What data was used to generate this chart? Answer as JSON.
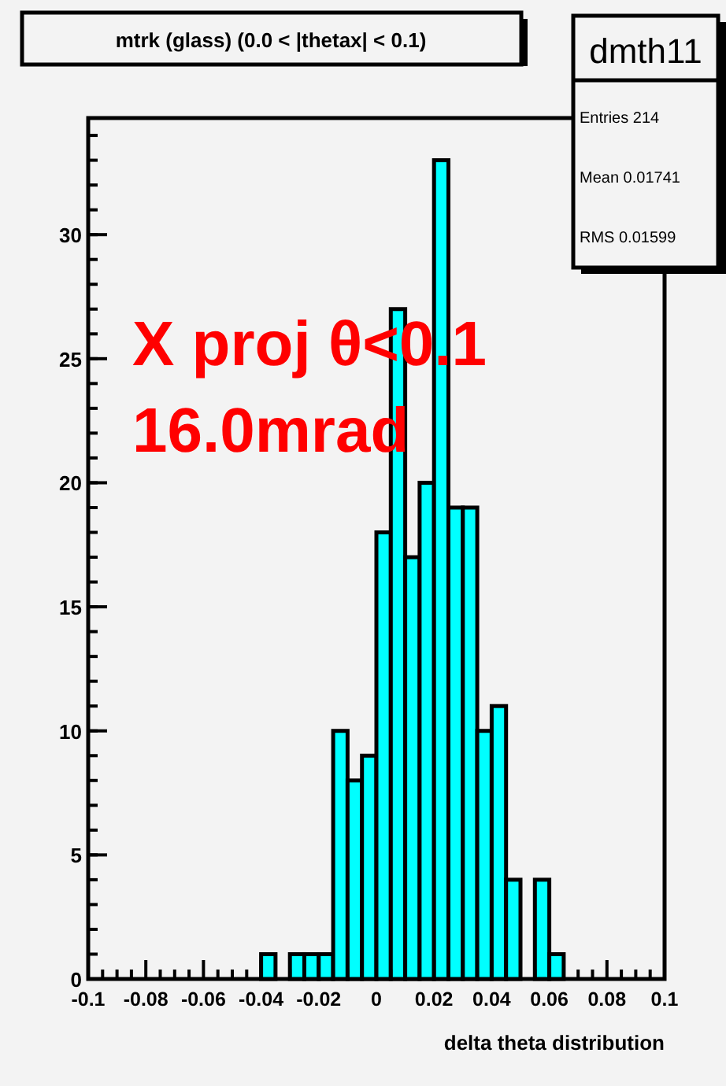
{
  "chart_data": {
    "type": "histogram",
    "title": "mtrk (glass) (0.0 < |thetax| < 0.1)",
    "xlabel": "delta theta distribution",
    "bins": [
      -0.1,
      -0.095,
      -0.09,
      -0.085,
      -0.08,
      -0.075,
      -0.07,
      -0.065,
      -0.06,
      -0.055,
      -0.05,
      -0.045,
      -0.04,
      -0.035,
      -0.03,
      -0.025,
      -0.02,
      -0.015,
      -0.01,
      -0.005,
      0,
      0.005,
      0.01,
      0.015,
      0.02,
      0.025,
      0.03,
      0.035,
      0.04,
      0.045,
      0.05,
      0.055,
      0.06,
      0.065,
      0.07,
      0.075,
      0.08,
      0.085,
      0.09,
      0.095,
      0.1
    ],
    "values": [
      0,
      0,
      0,
      0,
      0,
      0,
      0,
      0,
      0,
      0,
      0,
      0,
      1,
      0,
      1,
      1,
      1,
      10,
      8,
      9,
      18,
      27,
      17,
      20,
      33,
      19,
      19,
      10,
      11,
      4,
      0,
      4,
      1,
      0,
      0,
      0,
      0,
      0,
      0,
      0
    ],
    "color": "#00ffff",
    "xlim": [
      -0.1,
      0.1
    ],
    "xticks": [
      -0.1,
      -0.08,
      -0.06,
      -0.04,
      -0.02,
      0,
      0.02,
      0.04,
      0.06,
      0.08,
      0.1
    ],
    "ylim": [
      0,
      34.7
    ],
    "yticks": [
      0,
      5,
      10,
      15,
      20,
      25,
      30
    ],
    "grid": false,
    "annotations": [
      "dmth11",
      "Entries 214",
      "Mean 0.01741",
      "RMS 0.01599",
      "X proj θ<0.1",
      "16.0mrad"
    ]
  }
}
